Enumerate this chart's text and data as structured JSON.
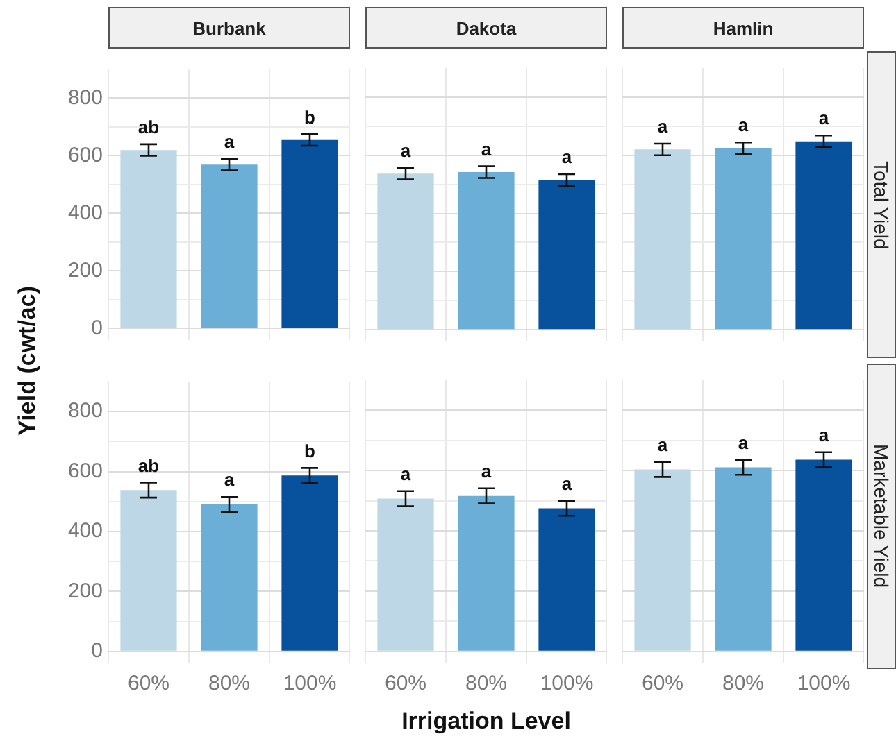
{
  "chart_data": [
    {
      "type": "bar",
      "title": "Burbank",
      "ylabel": "Yield (cwt/ac)",
      "categories": [
        "60%",
        "80%",
        "100%"
      ],
      "values": [
        620,
        569,
        655
      ],
      "errors": [
        20,
        20,
        20
      ],
      "colors": [
        "#bdd7e7",
        "#6baed6",
        "#08519c"
      ],
      "ylim": [
        -40,
        900
      ],
      "yticks": [
        0,
        {
          "value": 100,
          "label": null
        },
        200,
        {
          "value": 300,
          "label": null
        },
        400,
        {
          "value": 500,
          "label": null
        },
        600,
        {
          "value": 700,
          "label": null
        },
        800
      ],
      "grid": true,
      "tick_labels": "y",
      "annotations": [
        {
          "text": "ab",
          "x": "60%",
          "y": 640
        },
        {
          "text": "a",
          "x": "80%",
          "y": 589
        },
        {
          "text": "b",
          "x": "100%",
          "y": 675
        }
      ]
    },
    {
      "type": "bar",
      "title": "Dakota",
      "categories": [
        "60%",
        "80%",
        "100%"
      ],
      "values": [
        537,
        542,
        515
      ],
      "errors": [
        20,
        20,
        20
      ],
      "colors": [
        "#bdd7e7",
        "#6baed6",
        "#08519c"
      ],
      "ylim": [
        -40,
        900
      ],
      "yticks": [
        0,
        {
          "value": 100,
          "label": null
        },
        200,
        {
          "value": 300,
          "label": null
        },
        400,
        {
          "value": 500,
          "label": null
        },
        600,
        {
          "value": 700,
          "label": null
        },
        800
      ],
      "grid": true,
      "tick_labels": false,
      "annotations": [
        {
          "text": "a",
          "x": "60%",
          "y": 557
        },
        {
          "text": "a",
          "x": "80%",
          "y": 562
        },
        {
          "text": "a",
          "x": "100%",
          "y": 535
        }
      ]
    },
    {
      "type": "bar",
      "title": "Hamlin",
      "categories": [
        "60%",
        "80%",
        "100%"
      ],
      "values": [
        620,
        624,
        648
      ],
      "errors": [
        20,
        20,
        20
      ],
      "colors": [
        "#bdd7e7",
        "#6baed6",
        "#08519c"
      ],
      "ylim": [
        -40,
        900
      ],
      "yticks": [
        0,
        {
          "value": 100,
          "label": null
        },
        200,
        {
          "value": 300,
          "label": null
        },
        400,
        {
          "value": 500,
          "label": null
        },
        600,
        {
          "value": 700,
          "label": null
        },
        800
      ],
      "grid": true,
      "tick_labels": false,
      "annotations": [
        "Total Yield",
        {
          "text": "a",
          "x": "60%",
          "y": 640
        },
        {
          "text": "a",
          "x": "80%",
          "y": 644
        },
        {
          "text": "a",
          "x": "100%",
          "y": 668
        }
      ]
    },
    {
      "type": "bar",
      "categories": [
        "60%",
        "80%",
        "100%"
      ],
      "values": [
        538,
        490,
        587
      ],
      "errors": [
        25,
        25,
        25
      ],
      "colors": [
        "#bdd7e7",
        "#6baed6",
        "#08519c"
      ],
      "ylim": [
        -40,
        900
      ],
      "yticks": [
        0,
        {
          "value": 100,
          "label": null
        },
        200,
        {
          "value": 300,
          "label": null
        },
        400,
        {
          "value": 500,
          "label": null
        },
        600,
        {
          "value": 700,
          "label": null
        },
        800
      ],
      "grid": true,
      "annotations": [
        {
          "text": "ab",
          "x": "60%",
          "y": 563
        },
        {
          "text": "a",
          "x": "80%",
          "y": 515
        },
        {
          "text": "b",
          "x": "100%",
          "y": 612
        }
      ]
    },
    {
      "type": "bar",
      "xlabel": "Irrigation Level",
      "categories": [
        "60%",
        "80%",
        "100%"
      ],
      "values": [
        507,
        516,
        475
      ],
      "errors": [
        25,
        25,
        25
      ],
      "colors": [
        "#bdd7e7",
        "#6baed6",
        "#08519c"
      ],
      "ylim": [
        -40,
        900
      ],
      "yticks": [
        0,
        {
          "value": 100,
          "label": null
        },
        200,
        {
          "value": 300,
          "label": null
        },
        400,
        {
          "value": 500,
          "label": null
        },
        600,
        {
          "value": 700,
          "label": null
        },
        800
      ],
      "grid": true,
      "tick_labels": "x",
      "annotations": [
        {
          "text": "a",
          "x": "60%",
          "y": 532
        },
        {
          "text": "a",
          "x": "80%",
          "y": 541
        },
        {
          "text": "a",
          "x": "100%",
          "y": 500
        }
      ]
    },
    {
      "type": "bar",
      "categories": [
        "60%",
        "80%",
        "100%"
      ],
      "values": [
        604,
        611,
        636
      ],
      "errors": [
        25,
        25,
        25
      ],
      "colors": [
        "#bdd7e7",
        "#6baed6",
        "#08519c"
      ],
      "ylim": [
        -40,
        900
      ],
      "yticks": [
        0,
        {
          "value": 100,
          "label": null
        },
        200,
        {
          "value": 300,
          "label": null
        },
        400,
        {
          "value": 500,
          "label": null
        },
        600,
        {
          "value": 700,
          "label": null
        },
        800
      ],
      "grid": true,
      "tick_labels": "x",
      "annotations": [
        "Marketable Yield",
        {
          "text": "a",
          "x": "60%",
          "y": 629
        },
        {
          "text": "a",
          "x": "80%",
          "y": 636
        },
        {
          "text": "a",
          "x": "100%",
          "y": 661
        }
      ]
    }
  ]
}
